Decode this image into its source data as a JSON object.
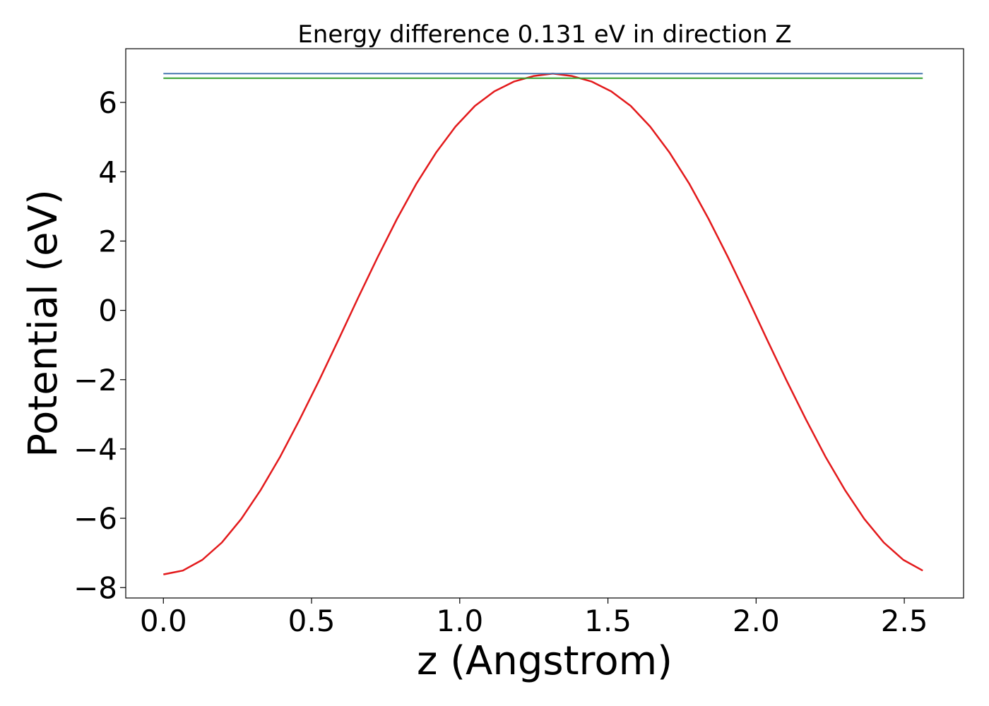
{
  "chart_data": {
    "type": "line",
    "title": "Energy difference 0.131 eV in direction Z",
    "xlabel": "z (Angstrom)",
    "ylabel": "Potential (eV)",
    "xlim": [
      -0.127,
      2.7
    ],
    "ylim": [
      -8.3,
      7.55
    ],
    "xticks": [
      0.0,
      0.5,
      1.0,
      1.5,
      2.0,
      2.5
    ],
    "xtick_labels": [
      "0.0",
      "0.5",
      "1.0",
      "1.5",
      "2.0",
      "2.5"
    ],
    "yticks": [
      -8,
      -6,
      -4,
      -2,
      0,
      2,
      4,
      6
    ],
    "ytick_labels": [
      "−8",
      "−6",
      "−4",
      "−2",
      "0",
      "2",
      "4",
      "6"
    ],
    "grid": false,
    "legend": "none",
    "series": [
      {
        "color": "#e31a1c",
        "style": "line",
        "x": [
          0.0,
          0.0657,
          0.1314,
          0.1971,
          0.2628,
          0.3285,
          0.3942,
          0.4599,
          0.5256,
          0.5913,
          0.657,
          0.7227,
          0.7884,
          0.8541,
          0.9198,
          0.9855,
          1.0512,
          1.1169,
          1.1826,
          1.2483,
          1.314,
          1.3797,
          1.4454,
          1.5111,
          1.5768,
          1.6425,
          1.7082,
          1.7739,
          1.8396,
          1.9053,
          1.971,
          2.0367,
          2.1024,
          2.1681,
          2.2338,
          2.2995,
          2.3652,
          2.4309,
          2.4966,
          2.5623
        ],
        "y": [
          -7.62,
          -7.51,
          -7.2,
          -6.7,
          -6.02,
          -5.18,
          -4.22,
          -3.15,
          -2.02,
          -0.84,
          0.36,
          1.53,
          2.64,
          3.66,
          4.55,
          5.3,
          5.9,
          6.32,
          6.6,
          6.76,
          6.83,
          6.76,
          6.6,
          6.32,
          5.9,
          5.3,
          4.55,
          3.66,
          2.64,
          1.53,
          0.36,
          -0.84,
          -2.02,
          -3.15,
          -4.22,
          -5.18,
          -6.02,
          -6.7,
          -7.2,
          -7.51
        ]
      },
      {
        "color": "#4878b0",
        "style": "hline",
        "x": [
          0.0,
          2.5623
        ],
        "y": [
          6.83,
          6.83
        ]
      },
      {
        "color": "#33a02c",
        "style": "hline",
        "x": [
          0.0,
          2.5623
        ],
        "y": [
          6.699,
          6.699
        ]
      }
    ]
  }
}
